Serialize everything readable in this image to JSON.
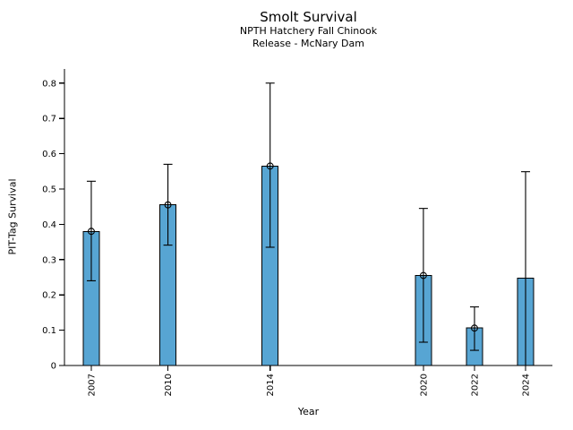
{
  "chart_data": {
    "type": "bar",
    "title": "Smolt Survival",
    "subtitle": [
      "NPTH Hatchery Fall Chinook",
      "Release - McNary Dam"
    ],
    "xlabel": "Year",
    "ylabel": "PIT-Tag Survival",
    "xlim": [
      2005.95,
      2025.05
    ],
    "ylim": [
      0,
      0.84
    ],
    "grid": false,
    "legend": false,
    "bar_width_years": 0.63,
    "colors": {
      "bar_fill": "#57A5D3",
      "bar_edge": "#000000",
      "error_bar": "#000000",
      "axis": "#000000",
      "text": "#000000",
      "background": "#ffffff"
    },
    "yticks": {
      "values": [
        0,
        0.1,
        0.2,
        0.3,
        0.4,
        0.5,
        0.6,
        0.7,
        0.8
      ],
      "labels": [
        "0",
        "0.1",
        "0.2",
        "0.3",
        "0.4",
        "0.5",
        "0.6",
        "0.7",
        "0.8"
      ]
    },
    "xticks": {
      "values": [
        2007,
        2010,
        2014,
        2020,
        2022,
        2024
      ],
      "labels": [
        "2007",
        "2010",
        "2014",
        "2020",
        "2022",
        "2024"
      ]
    },
    "points": [
      {
        "year": 2007,
        "value": 0.38,
        "ci_low": 0.24,
        "ci_high": 0.522,
        "marker": true,
        "low_cap": true
      },
      {
        "year": 2010,
        "value": 0.455,
        "ci_low": 0.341,
        "ci_high": 0.57,
        "marker": true,
        "low_cap": true
      },
      {
        "year": 2014,
        "value": 0.565,
        "ci_low": 0.335,
        "ci_high": 0.8,
        "marker": true,
        "low_cap": true
      },
      {
        "year": 2020,
        "value": 0.255,
        "ci_low": 0.066,
        "ci_high": 0.445,
        "marker": true,
        "low_cap": true
      },
      {
        "year": 2022,
        "value": 0.106,
        "ci_low": 0.043,
        "ci_high": 0.166,
        "marker": true,
        "low_cap": true
      },
      {
        "year": 2024,
        "value": 0.247,
        "ci_low": 0.0,
        "ci_high": 0.549,
        "marker": false,
        "low_cap": false
      }
    ]
  }
}
